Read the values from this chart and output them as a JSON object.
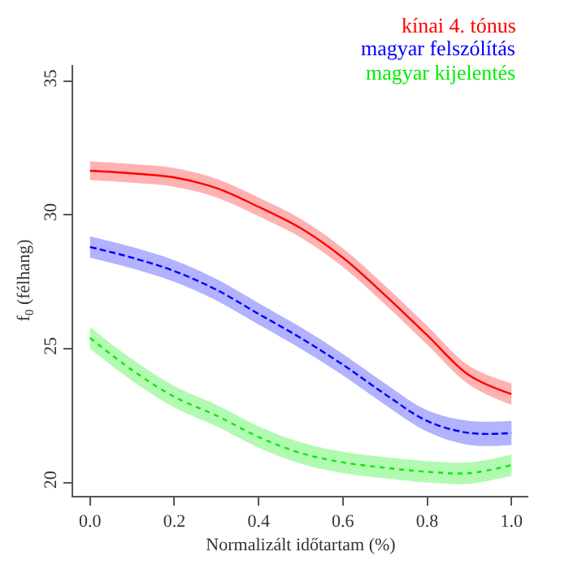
{
  "chart_data": {
    "type": "line",
    "xlabel": "Normalizált időtartam (%)",
    "ylabel": "f$_{0}$ (félhang)",
    "xlim": [
      -0.04,
      1.04
    ],
    "ylim": [
      19.5,
      35.6
    ],
    "xticks": [
      {
        "value": 0,
        "label": "0.0"
      },
      0.2,
      0.4,
      0.6,
      0.8,
      {
        "value": 1,
        "label": "1.0"
      }
    ],
    "yticks": [
      20,
      25,
      30,
      35
    ],
    "legend": "top right",
    "marker": "none",
    "x": [
      0,
      0.1,
      0.2,
      0.3,
      0.4,
      0.5,
      0.6,
      0.7,
      0.8,
      0.9,
      1.0
    ],
    "series": [
      {
        "name": "kínai 4. tónus",
        "color": "#ff0000",
        "line_style": "solid",
        "values": [
          31.65,
          31.55,
          31.4,
          31.0,
          30.3,
          29.5,
          28.4,
          27.0,
          25.5,
          24.0,
          23.3
        ],
        "lower": [
          31.3,
          31.2,
          31.05,
          30.65,
          29.95,
          29.15,
          28.05,
          26.65,
          25.15,
          23.65,
          22.9
        ],
        "upper": [
          32.0,
          31.9,
          31.75,
          31.35,
          30.65,
          29.85,
          28.75,
          27.35,
          25.85,
          24.35,
          23.7
        ]
      },
      {
        "name": "magyar felszólítás",
        "color": "#0000ff",
        "line_style": "dashed",
        "values": [
          28.8,
          28.4,
          27.9,
          27.2,
          26.3,
          25.4,
          24.4,
          23.3,
          22.3,
          21.85,
          21.85
        ],
        "lower": [
          28.4,
          28.0,
          27.5,
          26.8,
          25.9,
          25.0,
          24.0,
          22.9,
          21.9,
          21.4,
          21.4
        ],
        "upper": [
          29.2,
          28.8,
          28.3,
          27.6,
          26.7,
          25.8,
          24.8,
          23.7,
          22.7,
          22.3,
          22.3
        ]
      },
      {
        "name": "magyar kijelentés",
        "color": "#00ee00",
        "line_style": "dotted",
        "values": [
          25.4,
          24.2,
          23.2,
          22.5,
          21.7,
          21.1,
          20.75,
          20.55,
          20.4,
          20.35,
          20.65
        ],
        "lower": [
          25.0,
          23.8,
          22.8,
          22.1,
          21.3,
          20.7,
          20.35,
          20.15,
          20.0,
          19.95,
          20.25
        ],
        "upper": [
          25.8,
          24.6,
          23.6,
          22.9,
          22.1,
          21.5,
          21.15,
          20.95,
          20.8,
          20.75,
          21.05
        ]
      }
    ]
  }
}
